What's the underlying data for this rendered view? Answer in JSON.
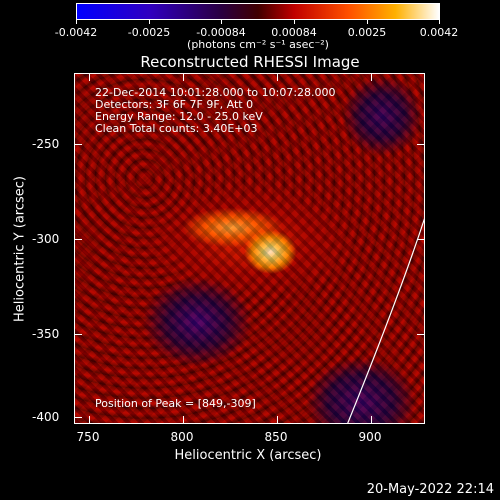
{
  "colorbar": {
    "tick_labels": [
      "-0.0042",
      "-0.0025",
      "-0.00084",
      "0.00084",
      "0.0025",
      "0.0042"
    ],
    "unit_label": "(photons cm⁻² s⁻¹ asec⁻²)"
  },
  "plot": {
    "title": "Reconstructed RHESSI Image",
    "info_lines": [
      "22-Dec-2014 10:01:28.000 to 10:07:28.000",
      "Detectors: 3F 6F 7F 9F, Att 0",
      "Energy Range: 12.0 - 25.0 keV",
      "Clean     Total counts: 3.40E+03"
    ],
    "peak_label": "Position of Peak = [849,-309]",
    "x_axis_title": "Heliocentric X (arcsec)",
    "y_axis_title": "Heliocentric Y (arcsec)",
    "x_tick_labels": [
      "750",
      "800",
      "850",
      "900"
    ],
    "y_tick_labels": [
      "-250",
      "-300",
      "-350",
      "-400"
    ]
  },
  "timestamp": "20-May-2022 22:14",
  "colors": {
    "background": "#000000",
    "limb_line": "#ffffff"
  }
}
